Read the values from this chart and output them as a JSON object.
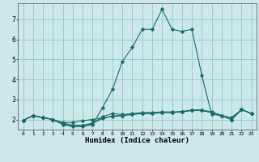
{
  "xlabel": "Humidex (Indice chaleur)",
  "background_color": "#cce8e8",
  "grid_color": "#99cccc",
  "line_color": "#1a6b6b",
  "xlim": [
    -0.5,
    23.5
  ],
  "ylim": [
    1.5,
    7.8
  ],
  "yticks": [
    2,
    3,
    4,
    5,
    6,
    7
  ],
  "xticks": [
    0,
    1,
    2,
    3,
    4,
    5,
    6,
    7,
    8,
    9,
    10,
    11,
    12,
    13,
    14,
    15,
    16,
    17,
    18,
    19,
    20,
    21,
    22,
    23
  ],
  "series": [
    {
      "x": [
        0,
        1,
        2,
        3,
        4,
        5,
        6,
        7,
        8,
        9,
        10,
        11,
        12,
        13,
        14,
        15,
        16,
        17,
        18,
        19,
        20,
        21,
        22,
        23
      ],
      "y": [
        1.95,
        2.2,
        2.1,
        2.0,
        1.75,
        1.65,
        1.65,
        1.75,
        2.6,
        3.5,
        4.9,
        5.6,
        6.5,
        6.5,
        7.5,
        6.5,
        6.4,
        6.5,
        4.2,
        2.25,
        2.2,
        2.0,
        2.5,
        2.3
      ]
    },
    {
      "x": [
        0,
        1,
        2,
        3,
        4,
        5,
        6,
        7,
        8,
        9,
        10,
        11,
        12,
        13,
        14,
        15,
        16,
        17,
        18,
        19,
        20,
        21,
        22,
        23
      ],
      "y": [
        1.95,
        2.2,
        2.1,
        2.0,
        1.85,
        1.85,
        1.95,
        2.0,
        2.1,
        2.15,
        2.2,
        2.25,
        2.3,
        2.3,
        2.35,
        2.35,
        2.4,
        2.45,
        2.45,
        2.35,
        2.2,
        2.1,
        2.5,
        2.3
      ]
    },
    {
      "x": [
        0,
        1,
        2,
        3,
        4,
        5,
        6,
        7,
        8,
        9,
        10,
        11,
        12,
        13,
        14,
        15,
        16,
        17,
        18,
        19,
        20,
        21,
        22,
        23
      ],
      "y": [
        1.95,
        2.2,
        2.1,
        2.0,
        1.8,
        1.7,
        1.7,
        1.8,
        2.15,
        2.3,
        2.25,
        2.3,
        2.35,
        2.35,
        2.38,
        2.38,
        2.4,
        2.48,
        2.48,
        2.38,
        2.2,
        2.0,
        2.5,
        2.3
      ]
    },
    {
      "x": [
        0,
        1,
        2,
        3,
        4,
        5,
        6,
        7,
        8,
        9,
        10,
        11,
        12,
        13,
        14,
        15,
        16,
        17,
        18,
        19,
        20,
        21,
        22,
        23
      ],
      "y": [
        1.95,
        2.2,
        2.1,
        2.0,
        1.82,
        1.72,
        1.72,
        1.82,
        2.05,
        2.18,
        2.2,
        2.27,
        2.32,
        2.32,
        2.36,
        2.36,
        2.38,
        2.46,
        2.46,
        2.36,
        2.2,
        2.0,
        2.5,
        2.3
      ]
    }
  ]
}
